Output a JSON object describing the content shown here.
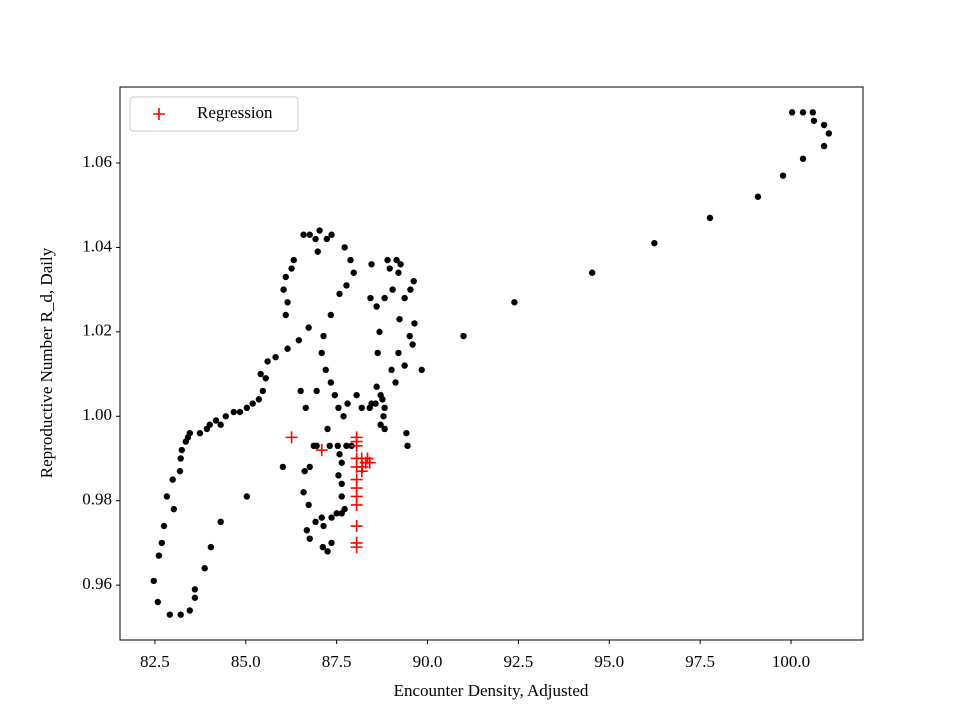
{
  "chart_data": {
    "type": "scatter",
    "xlabel": "Encounter Density, Adjusted",
    "ylabel": "Reproductive Number R_d, Daily",
    "xlim": [
      81.54,
      101.98
    ],
    "ylim": [
      0.947,
      1.078
    ],
    "xticks": [
      82.5,
      {
        "value": 85,
        "label": "85.0"
      },
      87.5,
      {
        "value": 90,
        "label": "90.0"
      },
      92.5,
      {
        "value": 95,
        "label": "95.0"
      },
      97.5,
      {
        "value": 100,
        "label": "100.0"
      }
    ],
    "yticks": [
      0.96,
      0.98,
      {
        "value": 1,
        "label": "1.00"
      },
      1.02,
      1.04,
      1.06
    ],
    "grid": false,
    "legend": "upper left",
    "series": [
      {
        "color": "#000000",
        "marker": "circle",
        "x": [
          100.03,
          100.33,
          100.6,
          100.63,
          100.91,
          101.04,
          100.91,
          100.33,
          99.78,
          99.09,
          97.77,
          96.24,
          94.53,
          92.39,
          90.99,
          89.84,
          82.47,
          82.61,
          82.69,
          82.83,
          83.02,
          82.75,
          82.99,
          83.19,
          83.21,
          83.24,
          83.35,
          83.41,
          83.46,
          83.74,
          83.93,
          84.01,
          84.18,
          84.31,
          84.45,
          84.67,
          84.84,
          85.03,
          85.19,
          85.36,
          85.47,
          85.55,
          85.41,
          85.6,
          85.82,
          86.15,
          86.46,
          86.73,
          86.1,
          86.15,
          86.04,
          86.1,
          86.26,
          86.32,
          86.59,
          86.76,
          86.92,
          87.03,
          86.98,
          87.23,
          87.36,
          87.72,
          87.88,
          87.97,
          87.77,
          87.58,
          87.34,
          87.14,
          87.09,
          87.2,
          87.34,
          87.45,
          87.55,
          87.69,
          82.58,
          82.91,
          83.21,
          83.46,
          83.6,
          83.6,
          83.87,
          84.04,
          84.31,
          85.03,
          88.46,
          88.9,
          88.96,
          89.15,
          89.26,
          89.2,
          89.04,
          88.82,
          88.43,
          88.6,
          88.68,
          88.63,
          88.6,
          88.57,
          88.41,
          88.19,
          88.46,
          88.82,
          88.79,
          88.71,
          88.82,
          88.05,
          87.8,
          86.65,
          86.95,
          86.51,
          86.95,
          87.25,
          87.53,
          87.77,
          87.91,
          87.58,
          87.31,
          87.64,
          87.55,
          87.64,
          87.64,
          87.72,
          87.5,
          87.36,
          87.14,
          86.92,
          86.68,
          86.76,
          87.12,
          87.25,
          87.36,
          87.09,
          86.73,
          86.59,
          86.62,
          86.76,
          86.87,
          86.02,
          87.64,
          89.42,
          89.45,
          89.37,
          89.59,
          89.64,
          89.51,
          89.2,
          89.01,
          89.53,
          89.62,
          88.76,
          89.12,
          89.23,
          89.37,
          88.71
        ],
        "y": [
          1.072,
          1.072,
          1.072,
          1.07,
          1.069,
          1.067,
          1.064,
          1.061,
          1.057,
          1.052,
          1.047,
          1.041,
          1.034,
          1.027,
          1.019,
          1.011,
          0.961,
          0.967,
          0.97,
          0.981,
          0.978,
          0.974,
          0.985,
          0.987,
          0.99,
          0.992,
          0.994,
          0.995,
          0.996,
          0.996,
          0.997,
          0.998,
          0.999,
          0.998,
          1.0,
          1.001,
          1.001,
          1.002,
          1.003,
          1.004,
          1.006,
          1.009,
          1.01,
          1.013,
          1.014,
          1.016,
          1.018,
          1.021,
          1.024,
          1.027,
          1.03,
          1.033,
          1.035,
          1.037,
          1.043,
          1.043,
          1.042,
          1.044,
          1.039,
          1.042,
          1.043,
          1.04,
          1.037,
          1.034,
          1.031,
          1.029,
          1.024,
          1.019,
          1.015,
          1.011,
          1.008,
          1.005,
          1.002,
          1.0,
          0.956,
          0.953,
          0.953,
          0.954,
          0.957,
          0.959,
          0.964,
          0.969,
          0.975,
          0.981,
          1.036,
          1.037,
          1.035,
          1.037,
          1.036,
          1.034,
          1.03,
          1.028,
          1.028,
          1.026,
          1.02,
          1.015,
          1.007,
          1.003,
          1.002,
          1.002,
          1.003,
          1.002,
          1.0,
          0.998,
          0.997,
          1.005,
          1.003,
          1.002,
          1.006,
          1.006,
          0.993,
          0.997,
          0.993,
          0.993,
          0.993,
          0.991,
          0.993,
          0.989,
          0.986,
          0.984,
          0.981,
          0.978,
          0.977,
          0.976,
          0.974,
          0.975,
          0.973,
          0.971,
          0.969,
          0.968,
          0.97,
          0.976,
          0.979,
          0.982,
          0.987,
          0.988,
          0.993,
          0.988,
          0.977,
          0.996,
          0.993,
          1.012,
          1.017,
          1.022,
          1.019,
          1.015,
          1.011,
          1.03,
          1.032,
          1.004,
          1.008,
          1.023,
          1.028,
          1.005
        ]
      },
      {
        "name": "Regression",
        "color": "#ff0000",
        "marker": "plus",
        "x": [
          86.26,
          87.09,
          88.05,
          88.05,
          88.05,
          88.05,
          88.05,
          88.05,
          88.05,
          88.05,
          88.05,
          88.05,
          88.05,
          88.05,
          88.19,
          88.3,
          88.35,
          88.19,
          88.21,
          88.41
        ],
        "y": [
          0.995,
          0.992,
          0.995,
          0.994,
          0.993,
          0.99,
          0.988,
          0.985,
          0.983,
          0.981,
          0.979,
          0.974,
          0.97,
          0.969,
          0.99,
          0.989,
          0.99,
          0.987,
          0.988,
          0.989
        ]
      }
    ]
  }
}
